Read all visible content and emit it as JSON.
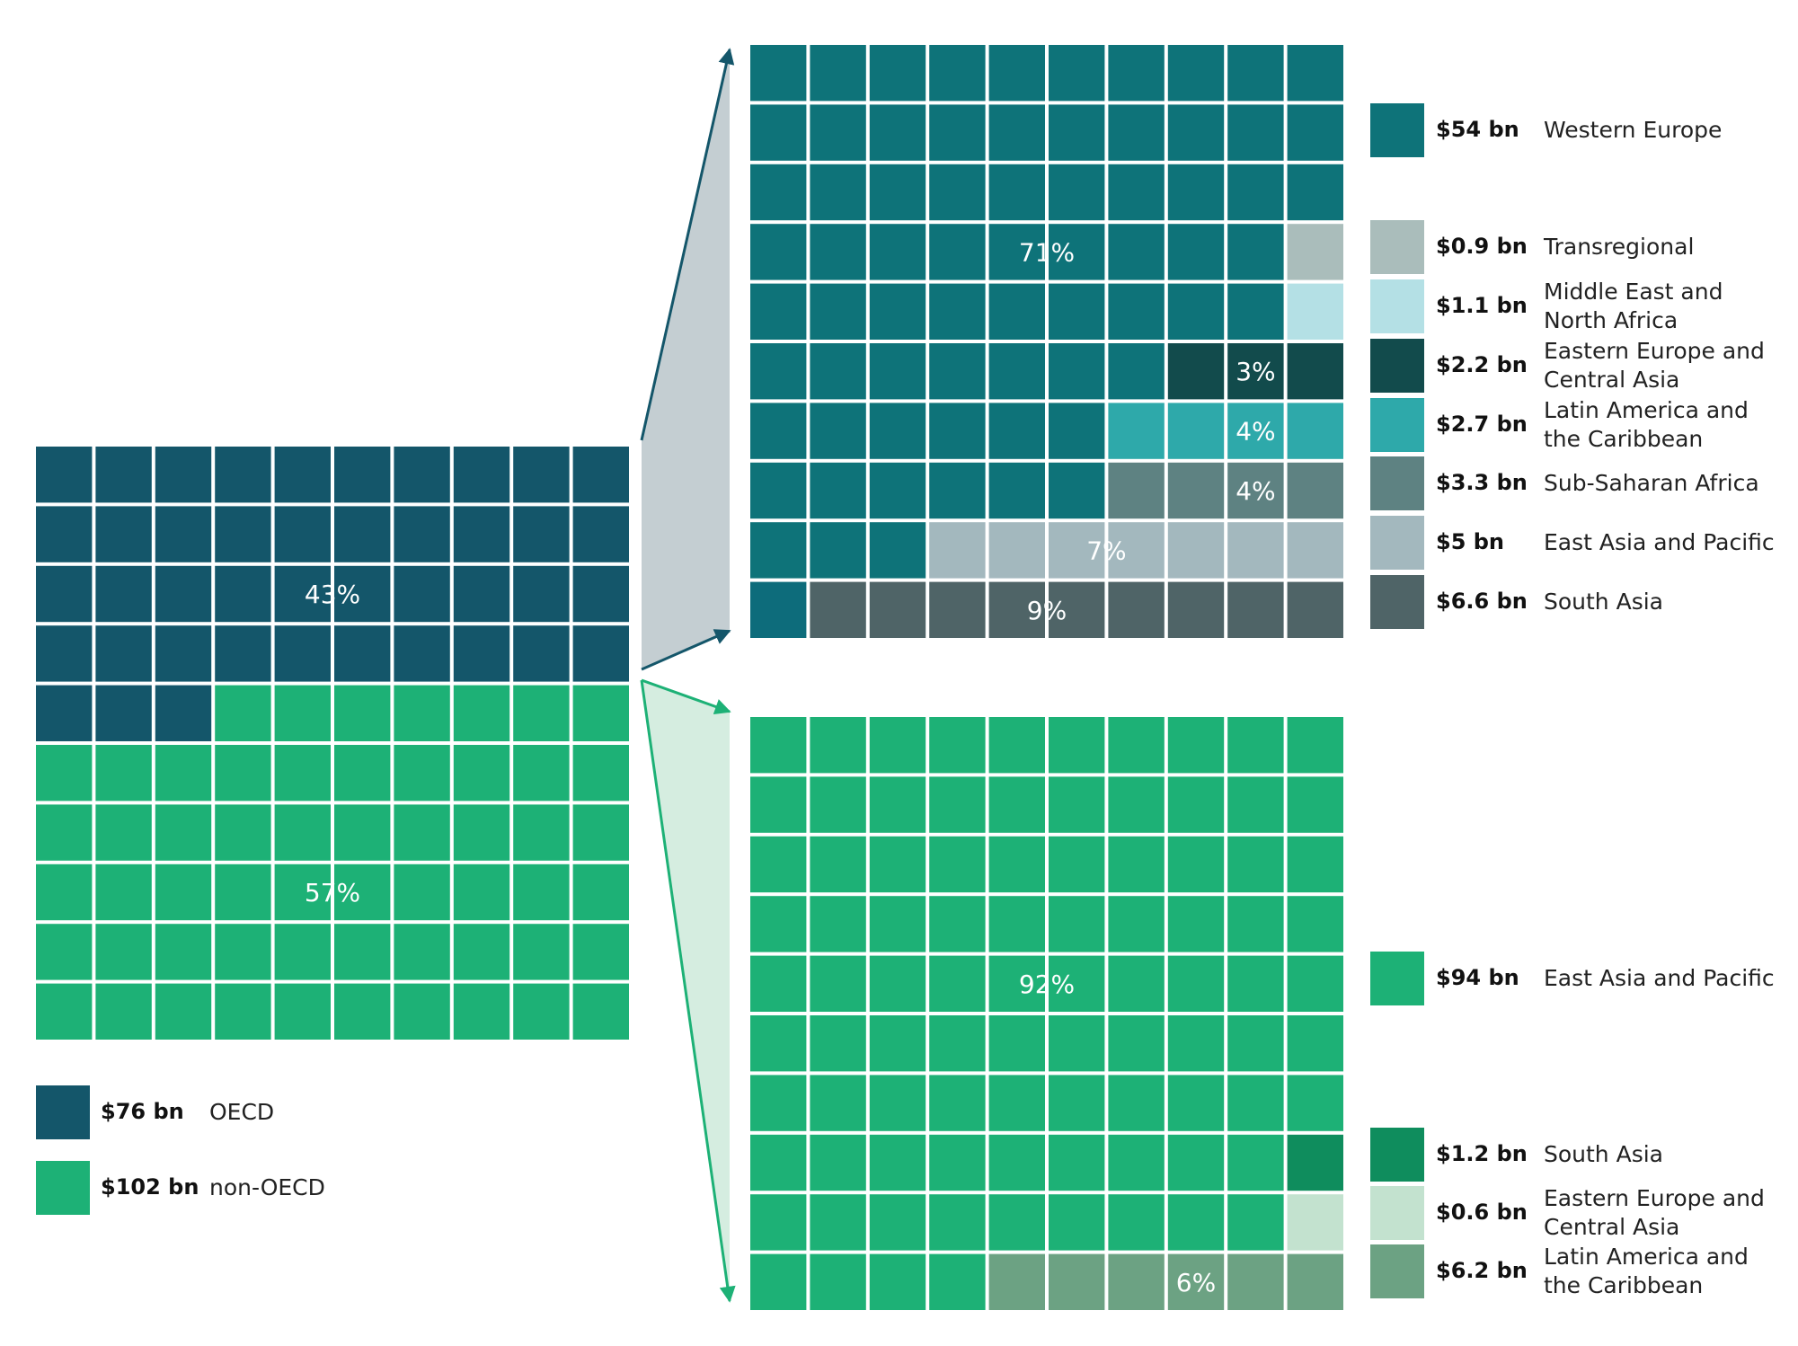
{
  "chart_data": [
    {
      "type": "waffle",
      "id": "overall",
      "total_cells": 100,
      "categories": [
        {
          "name": "OECD",
          "amount_label": "$76 bn",
          "percent_label": "43%",
          "cells": 43,
          "color": "#14566A"
        },
        {
          "name": "non-OECD",
          "amount_label": "$102 bn",
          "percent_label": "57%",
          "cells": 57,
          "color": "#1DB176"
        }
      ]
    },
    {
      "type": "waffle",
      "id": "oecd-breakdown",
      "parent": "OECD",
      "total_cells": 100,
      "categories": [
        {
          "name": "Western Europe",
          "amount_label": "$54 bn",
          "percent_label": "71%",
          "cells": 71,
          "color": "#0E7379"
        },
        {
          "name": "Transregional",
          "amount_label": "$0.9 bn",
          "percent_label": "",
          "cells": 1,
          "color": "#AABDBB"
        },
        {
          "name": "Middle East and North Africa",
          "amount_label": "$1.1 bn",
          "percent_label": "",
          "cells": 1,
          "color": "#B4E0E5"
        },
        {
          "name": "Eastern Europe and Central Asia",
          "amount_label": "$2.2 bn",
          "percent_label": "3%",
          "cells": 3,
          "color": "#124B4C"
        },
        {
          "name": "Latin America and the Caribbean",
          "amount_label": "$2.7 bn",
          "percent_label": "4%",
          "cells": 4,
          "color": "#2EA9AA"
        },
        {
          "name": "Sub-Saharan Africa",
          "amount_label": "$3.3 bn",
          "percent_label": "4%",
          "cells": 4,
          "color": "#5E8282"
        },
        {
          "name": "East Asia and Pacific",
          "amount_label": "$5 bn",
          "percent_label": "7%",
          "cells": 7,
          "color": "#A3B8BE"
        },
        {
          "name": "South Asia",
          "amount_label": "$6.6 bn",
          "percent_label": "9%",
          "cells": 9,
          "color": "#4F6467"
        }
      ]
    },
    {
      "type": "waffle",
      "id": "non-oecd-breakdown",
      "parent": "non-OECD",
      "total_cells": 100,
      "categories": [
        {
          "name": "East Asia and Pacific",
          "amount_label": "$94 bn",
          "percent_label": "92%",
          "cells": 92,
          "color": "#1DB176"
        },
        {
          "name": "South Asia",
          "amount_label": "$1.2 bn",
          "percent_label": "",
          "cells": 1,
          "color": "#0F8D5D"
        },
        {
          "name": "Eastern Europe and Central Asia",
          "amount_label": "$0.6 bn",
          "percent_label": "",
          "cells": 1,
          "color": "#C3E2CF"
        },
        {
          "name": "Latin America and the Caribbean",
          "amount_label": "$6.2 bn",
          "percent_label": "6%",
          "cells": 6,
          "color": "#6CA283"
        }
      ]
    }
  ],
  "legend_text": {
    "overall": [
      {
        "value": "$76 bn",
        "label": "OECD"
      },
      {
        "value": "$102 bn",
        "label": "non-OECD"
      }
    ],
    "oecd": [
      {
        "value": "$54 bn",
        "label": "Western Europe"
      },
      {
        "value": "$0.9 bn",
        "label": "Transregional"
      },
      {
        "value": "$1.1 bn",
        "label": "Middle East and North Africa"
      },
      {
        "value": "$2.2 bn",
        "label": "Eastern Europe and Central Asia"
      },
      {
        "value": "$2.7 bn",
        "label": "Latin America and the Caribbean"
      },
      {
        "value": "$3.3 bn",
        "label": "Sub-Saharan Africa"
      },
      {
        "value": "$5 bn",
        "label": "East Asia and Pacific"
      },
      {
        "value": "$6.6 bn",
        "label": "South Asia"
      }
    ],
    "non_oecd": [
      {
        "value": "$94 bn",
        "label": "East Asia and Pacific"
      },
      {
        "value": "$1.2 bn",
        "label": "South Asia"
      },
      {
        "value": "$0.6 bn",
        "label": "Eastern Europe and Central Asia"
      },
      {
        "value": "$6.2 bn",
        "label": "Latin America and the Caribbean"
      }
    ]
  },
  "colors": {
    "oecd_connector_fill": "#C4CED2",
    "oecd_connector_stroke": "#14566A",
    "non_oecd_connector_fill": "#D5EDE0",
    "non_oecd_connector_stroke": "#1DB176"
  }
}
